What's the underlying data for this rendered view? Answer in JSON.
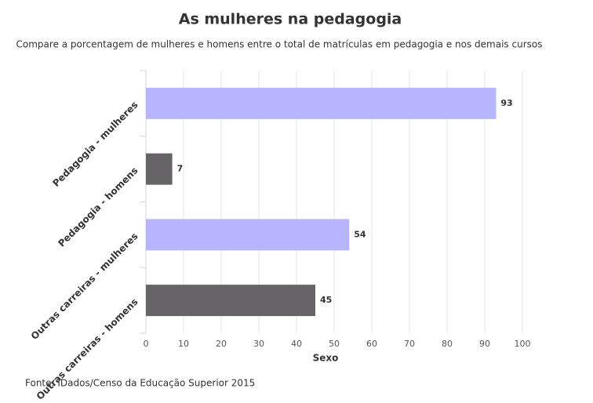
{
  "chart_data": {
    "type": "barh",
    "title": "As mulheres na pedagogia",
    "subtitle": "Compare a porcentagem de mulheres e homens entre o total de matrículas em pedagogia e nos demais cursos",
    "categories": [
      "Pedagogia - mulheres",
      "Pedagogia - homens",
      "Outras carreiras - mulheres",
      "Outras carreiras - homens"
    ],
    "values": [
      93,
      7,
      54,
      45
    ],
    "colors": [
      "#b8b5ff",
      "#666466",
      "#b8b5ff",
      "#666466"
    ],
    "x_label": "Sexo",
    "xlim": [
      0,
      100
    ],
    "xticks": [
      0,
      10,
      20,
      30,
      40,
      50,
      60,
      70,
      80,
      90,
      100
    ],
    "grid": true,
    "source": "Fonte: IDados/Censo da Educação Superior 2015"
  }
}
